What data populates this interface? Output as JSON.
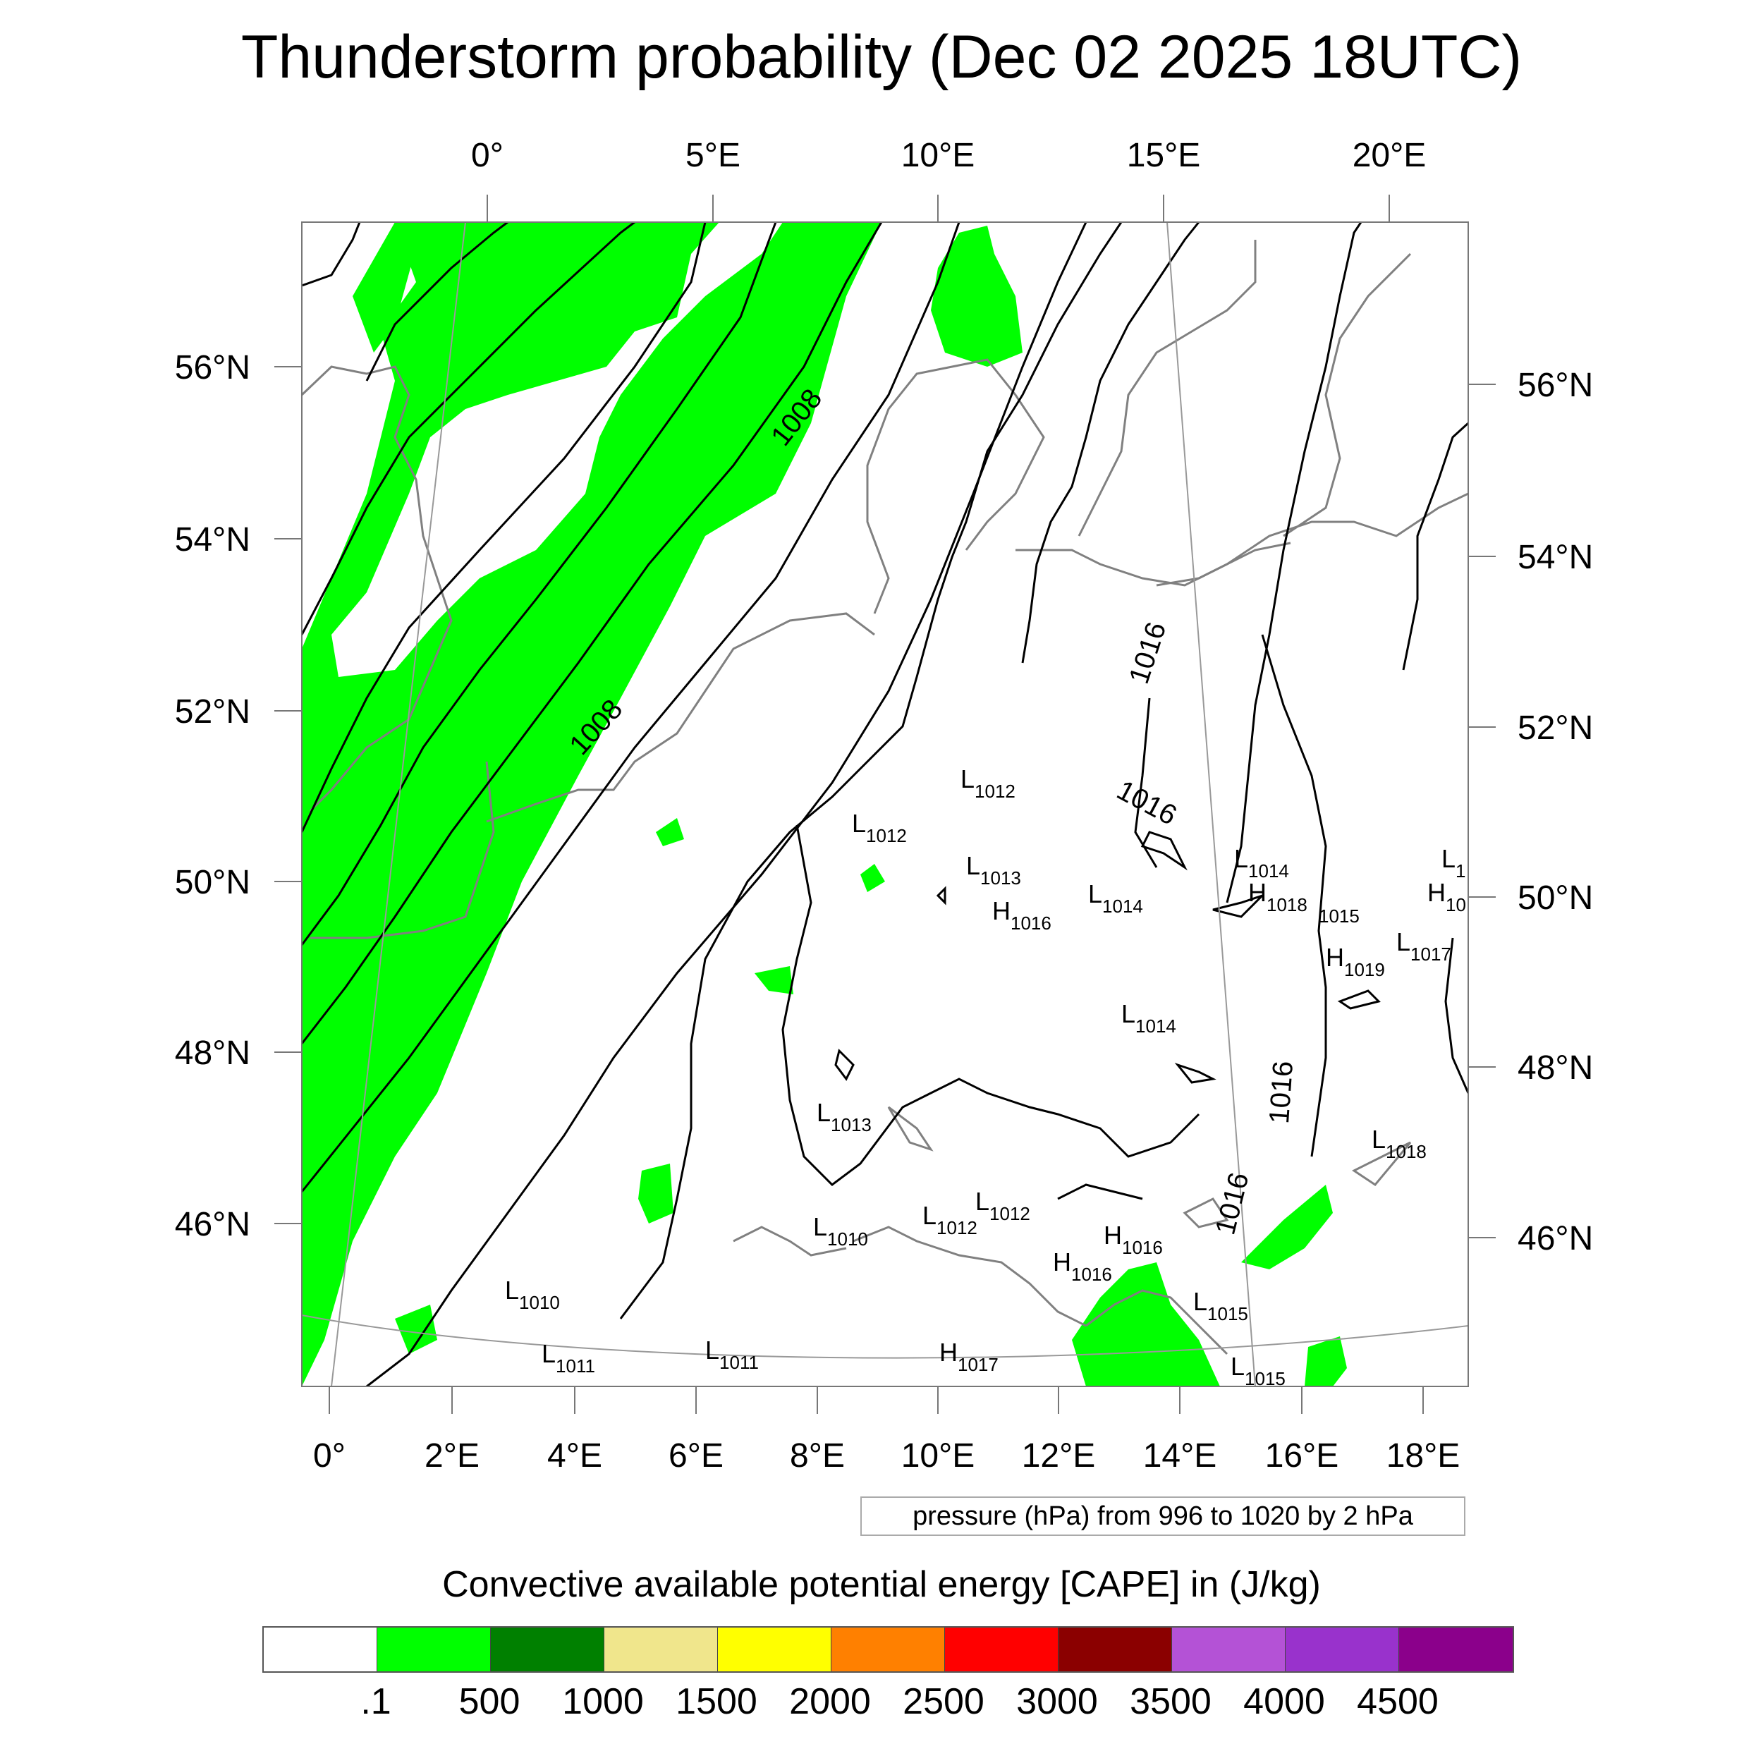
{
  "title": "Thunderstorm probability (Dec 02 2025 18UTC)",
  "top_lon_labels": [
    "0°",
    "5°E",
    "10°E",
    "15°E",
    "20°E"
  ],
  "bottom_lon_labels": [
    "0°",
    "2°E",
    "4°E",
    "6°E",
    "8°E",
    "10°E",
    "12°E",
    "14°E",
    "16°E",
    "18°E"
  ],
  "left_lat_labels": [
    "56°N",
    "54°N",
    "52°N",
    "50°N",
    "48°N",
    "46°N"
  ],
  "right_lat_labels": [
    "56°N",
    "54°N",
    "52°N",
    "50°N",
    "48°N",
    "46°N"
  ],
  "isobar_labels": [
    "1008",
    "1008",
    "1016",
    "1016",
    "1016",
    "1016"
  ],
  "pressure_centers": [
    {
      "letter": "L",
      "value": "1012"
    },
    {
      "letter": "L",
      "value": "1012"
    },
    {
      "letter": "L",
      "value": "1013"
    },
    {
      "letter": "H",
      "value": "1016"
    },
    {
      "letter": "L",
      "value": "1014"
    },
    {
      "letter": "L",
      "value": "1014"
    },
    {
      "letter": "H",
      "value": "1018"
    },
    {
      "letter": "",
      "value": "1015"
    },
    {
      "letter": "H",
      "value": "1019"
    },
    {
      "letter": "L",
      "value": "1017"
    },
    {
      "letter": "L",
      "value": "1014"
    },
    {
      "letter": "L",
      "value": "1013"
    },
    {
      "letter": "L",
      "value": "1018"
    },
    {
      "letter": "L",
      "value": "1012"
    },
    {
      "letter": "L",
      "value": "1012"
    },
    {
      "letter": "L",
      "value": "1010"
    },
    {
      "letter": "H",
      "value": "1016"
    },
    {
      "letter": "H",
      "value": "1016"
    },
    {
      "letter": "L",
      "value": "1010"
    },
    {
      "letter": "L",
      "value": "1015"
    },
    {
      "letter": "L",
      "value": "1011"
    },
    {
      "letter": "L",
      "value": "1011"
    },
    {
      "letter": "H",
      "value": "1017"
    },
    {
      "letter": "L",
      "value": "1015"
    },
    {
      "letter": "L",
      "value": "1"
    },
    {
      "letter": "H",
      "value": "10"
    }
  ],
  "pressure_note": "pressure (hPa) from 996 to 1020 by 2 hPa",
  "colorbar": {
    "title": "Convective available potential energy [CAPE] in (J/kg)",
    "colors": [
      "#ffffff",
      "#00ff00",
      "#008000",
      "#f0e68c",
      "#ffff00",
      "#ff8000",
      "#ff0000",
      "#8b0000",
      "#b452d6",
      "#9932cc",
      "#8b008b"
    ],
    "labels": [
      ".1",
      "500",
      "1000",
      "1500",
      "2000",
      "2500",
      "3000",
      "3500",
      "4000",
      "4500"
    ]
  },
  "colors": {
    "cape_fill": "#00ff00",
    "coastline": "#808080",
    "isobar": "#000000",
    "grid": "#999999"
  }
}
